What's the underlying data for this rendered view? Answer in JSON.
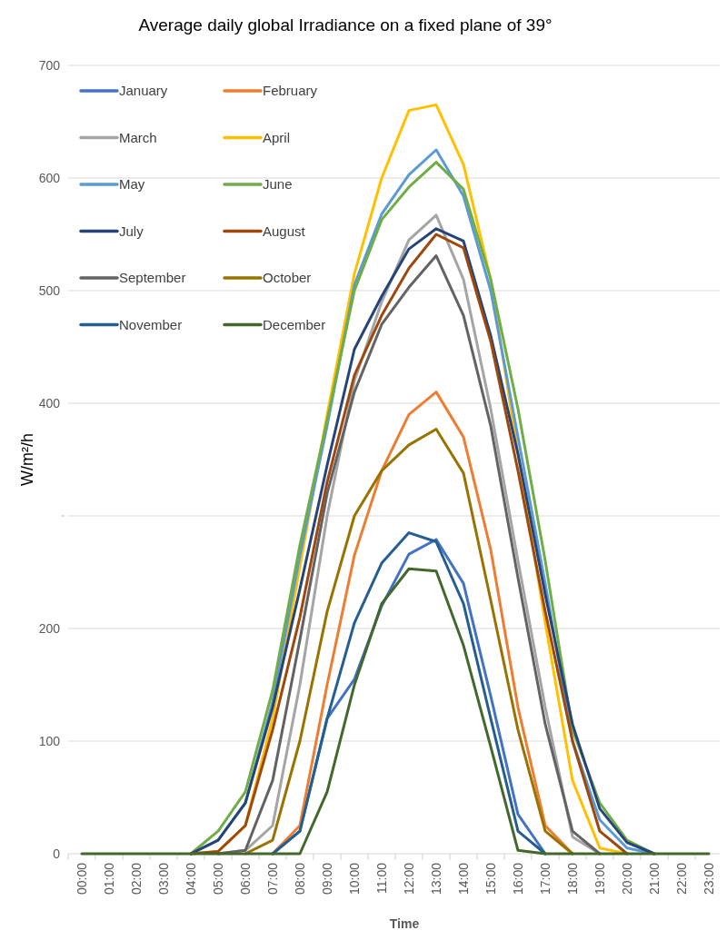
{
  "chart_data": {
    "type": "line",
    "title": "Average daily global Irradiance on a fixed plane of 39°",
    "xlabel": "Time",
    "ylabel": "W/m²/h",
    "categories": [
      "00:00",
      "01:00",
      "02:00",
      "03:00",
      "04:00",
      "05:00",
      "06:00",
      "07:00",
      "08:00",
      "09:00",
      "10:00",
      "11:00",
      "12:00",
      "13:00",
      "14:00",
      "15:00",
      "16:00",
      "17:00",
      "18:00",
      "19:00",
      "20:00",
      "21:00",
      "22:00",
      "23:00"
    ],
    "ylim": [
      0,
      700
    ],
    "yticks": [
      0,
      100,
      200,
      {
        "value": 300,
        "label": null
      },
      400,
      500,
      600,
      700
    ],
    "grid": "y",
    "legend": "top left",
    "marker": "none",
    "line_style": "solid",
    "series": [
      {
        "name": "January",
        "color": "#4472c4",
        "values": [
          null,
          null,
          null,
          null,
          null,
          null,
          null,
          0,
          20,
          120,
          155,
          220,
          266,
          279,
          240,
          140,
          35,
          0,
          null,
          null,
          null,
          null,
          null,
          null
        ]
      },
      {
        "name": "February",
        "color": "#ed7d31",
        "values": [
          null,
          null,
          null,
          null,
          null,
          null,
          null,
          0,
          25,
          150,
          265,
          340,
          390,
          410,
          370,
          270,
          130,
          25,
          0,
          null,
          null,
          null,
          null,
          null
        ]
      },
      {
        "name": "March",
        "color": "#a5a5a5",
        "values": [
          null,
          null,
          null,
          null,
          null,
          0,
          3,
          25,
          150,
          300,
          420,
          490,
          545,
          567,
          510,
          395,
          260,
          130,
          15,
          0,
          null,
          null,
          null,
          null
        ]
      },
      {
        "name": "April",
        "color": "#ffc000",
        "values": [
          null,
          null,
          null,
          null,
          0,
          2,
          25,
          120,
          255,
          390,
          515,
          600,
          660,
          665,
          612,
          510,
          355,
          205,
          65,
          5,
          0,
          null,
          null,
          null
        ]
      },
      {
        "name": "May",
        "color": "#5b9bd5",
        "values": [
          null,
          null,
          null,
          null,
          0,
          12,
          45,
          135,
          265,
          380,
          505,
          568,
          603,
          625,
          584,
          500,
          370,
          240,
          100,
          30,
          5,
          0,
          null,
          null
        ]
      },
      {
        "name": "June",
        "color": "#70ad47",
        "values": [
          null,
          null,
          null,
          null,
          0,
          20,
          55,
          145,
          274,
          385,
          500,
          563,
          592,
          614,
          590,
          510,
          395,
          260,
          110,
          45,
          12,
          0,
          null,
          null
        ]
      },
      {
        "name": "July",
        "color": "#264478",
        "values": [
          null,
          null,
          null,
          null,
          0,
          12,
          45,
          130,
          235,
          345,
          448,
          495,
          537,
          555,
          544,
          460,
          355,
          230,
          115,
          40,
          10,
          0,
          null,
          null
        ]
      },
      {
        "name": "August",
        "color": "#9e480e",
        "values": [
          null,
          null,
          null,
          null,
          0,
          2,
          25,
          110,
          210,
          330,
          425,
          478,
          520,
          550,
          538,
          455,
          340,
          215,
          100,
          20,
          0,
          null,
          null,
          null
        ]
      },
      {
        "name": "September",
        "color": "#636363",
        "values": [
          null,
          null,
          null,
          null,
          null,
          0,
          3,
          65,
          190,
          320,
          410,
          470,
          503,
          531,
          478,
          380,
          245,
          115,
          20,
          0,
          null,
          null,
          null,
          null
        ]
      },
      {
        "name": "October",
        "color": "#997300",
        "values": [
          null,
          null,
          null,
          null,
          null,
          null,
          0,
          12,
          100,
          215,
          300,
          340,
          363,
          377,
          338,
          225,
          110,
          20,
          0,
          null,
          null,
          null,
          null,
          null
        ]
      },
      {
        "name": "November",
        "color": "#255e91",
        "values": [
          null,
          null,
          null,
          null,
          null,
          null,
          null,
          0,
          20,
          120,
          205,
          258,
          285,
          277,
          222,
          120,
          20,
          0,
          null,
          null,
          null,
          null,
          null,
          null
        ]
      },
      {
        "name": "December",
        "color": "#43682b",
        "values": [
          0,
          0,
          0,
          0,
          0,
          0,
          0,
          0,
          0,
          55,
          150,
          222,
          253,
          251,
          185,
          95,
          3,
          0,
          0,
          0,
          0,
          0,
          0,
          0
        ]
      }
    ]
  }
}
